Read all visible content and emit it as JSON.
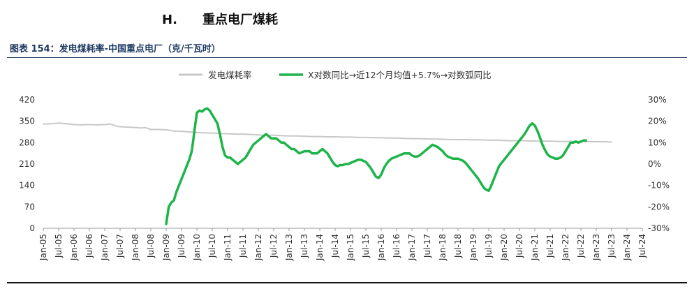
{
  "header": {
    "section_letter": "H.",
    "section_title": "重点电厂煤耗"
  },
  "figure": {
    "caption": "图表 154：发电煤耗率-中国重点电厂（克/千瓦时）"
  },
  "colors": {
    "series_primary": "#c8c8c8",
    "series_secondary": "#1db44a",
    "caption": "#1f3a63"
  },
  "chart_data": {
    "type": "line",
    "x_type": "month",
    "x_range": [
      "2005-01",
      "2024-07"
    ],
    "x_tick_labels": [
      "Jan-05",
      "Jul-05",
      "Jan-06",
      "Jul-06",
      "Jan-07",
      "Jul-07",
      "Jan-08",
      "Jul-08",
      "Jan-09",
      "Jul-09",
      "Jan-10",
      "Jul-10",
      "Jan-11",
      "Jul-11",
      "Jan-12",
      "Jul-12",
      "Jan-13",
      "Jul-13",
      "Jan-14",
      "Jul-14",
      "Jan-15",
      "Jul-15",
      "Jan-16",
      "Jul-16",
      "Jan-17",
      "Jul-17",
      "Jan-18",
      "Jul-18",
      "Jan-19",
      "Jul-19",
      "Jan-20",
      "Jul-20",
      "Jan-21",
      "Jul-21",
      "Jan-22",
      "Jul-22",
      "Jan-23",
      "Jul-23",
      "Jan-24",
      "Jul-24"
    ],
    "y_left": {
      "range": [
        0,
        420
      ],
      "ticks": [
        "0",
        "70",
        "140",
        "210",
        "280",
        "350",
        "420"
      ]
    },
    "y_right": {
      "range": [
        -30,
        30
      ],
      "ticks": [
        "-30%",
        "-20%",
        "-10%",
        "0%",
        "10%",
        "20%",
        "30%"
      ]
    },
    "legend_position": "top",
    "gridlines": false,
    "series": [
      {
        "name": "发电煤耗率",
        "axis": "left",
        "points": [
          [
            "2005-01",
            341
          ],
          [
            "2005-04",
            342
          ],
          [
            "2005-07",
            344
          ],
          [
            "2005-10",
            342
          ],
          [
            "2006-01",
            339
          ],
          [
            "2006-04",
            338
          ],
          [
            "2006-07",
            339
          ],
          [
            "2006-10",
            338
          ],
          [
            "2007-01",
            339
          ],
          [
            "2007-03",
            341
          ],
          [
            "2007-06",
            333
          ],
          [
            "2007-09",
            331
          ],
          [
            "2007-12",
            330
          ],
          [
            "2008-03",
            328
          ],
          [
            "2008-05",
            329
          ],
          [
            "2008-07",
            323
          ],
          [
            "2008-10",
            323
          ],
          [
            "2009-01",
            322
          ],
          [
            "2009-04",
            318
          ],
          [
            "2009-07",
            317
          ],
          [
            "2009-10",
            315
          ],
          [
            "2010-01",
            313
          ],
          [
            "2010-04",
            312
          ],
          [
            "2010-07",
            311
          ],
          [
            "2010-10",
            310
          ],
          [
            "2011-01",
            309
          ],
          [
            "2011-04",
            308
          ],
          [
            "2011-07",
            308
          ],
          [
            "2011-10",
            307
          ],
          [
            "2012-01",
            305
          ],
          [
            "2012-04",
            304
          ],
          [
            "2012-07",
            304
          ],
          [
            "2012-10",
            303
          ],
          [
            "2013-01",
            302
          ],
          [
            "2013-04",
            302
          ],
          [
            "2013-07",
            301
          ],
          [
            "2013-10",
            300
          ],
          [
            "2014-01",
            300
          ],
          [
            "2014-04",
            299
          ],
          [
            "2014-07",
            299
          ],
          [
            "2014-10",
            298
          ],
          [
            "2015-01",
            298
          ],
          [
            "2015-04",
            297
          ],
          [
            "2015-07",
            297
          ],
          [
            "2015-10",
            296
          ],
          [
            "2016-01",
            296
          ],
          [
            "2016-04",
            295
          ],
          [
            "2016-07",
            295
          ],
          [
            "2016-10",
            294
          ],
          [
            "2017-01",
            293
          ],
          [
            "2017-04",
            293
          ],
          [
            "2017-07",
            292
          ],
          [
            "2017-10",
            292
          ],
          [
            "2018-01",
            291
          ],
          [
            "2018-04",
            290
          ],
          [
            "2018-07",
            290
          ],
          [
            "2018-10",
            290
          ],
          [
            "2019-01",
            289
          ],
          [
            "2019-04",
            289
          ],
          [
            "2019-07",
            288
          ],
          [
            "2019-10",
            288
          ],
          [
            "2020-01",
            287
          ],
          [
            "2020-04",
            286
          ],
          [
            "2020-07",
            287
          ],
          [
            "2020-10",
            286
          ],
          [
            "2021-01",
            285
          ],
          [
            "2021-04",
            285
          ],
          [
            "2021-07",
            285
          ],
          [
            "2021-10",
            284
          ],
          [
            "2022-01",
            284
          ],
          [
            "2022-04",
            284
          ],
          [
            "2022-07",
            284
          ],
          [
            "2022-10",
            283
          ],
          [
            "2023-01",
            283
          ],
          [
            "2023-04",
            283
          ],
          [
            "2023-07",
            282
          ]
        ]
      },
      {
        "name": "X对数同比→近12个月均值+5.7%→对数弧同比",
        "axis": "right",
        "points": [
          [
            "2009-01",
            -28
          ],
          [
            "2009-02",
            -20
          ],
          [
            "2009-03",
            -18
          ],
          [
            "2009-04",
            -17
          ],
          [
            "2009-05",
            -13
          ],
          [
            "2009-06",
            -10
          ],
          [
            "2009-07",
            -7
          ],
          [
            "2009-08",
            -4
          ],
          [
            "2009-09",
            -1
          ],
          [
            "2009-10",
            2
          ],
          [
            "2009-11",
            6
          ],
          [
            "2009-12",
            15
          ],
          [
            "2010-01",
            24
          ],
          [
            "2010-02",
            25
          ],
          [
            "2010-03",
            24.5
          ],
          [
            "2010-04",
            25.5
          ],
          [
            "2010-05",
            26
          ],
          [
            "2010-06",
            25
          ],
          [
            "2010-07",
            23
          ],
          [
            "2010-08",
            21
          ],
          [
            "2010-09",
            19
          ],
          [
            "2010-10",
            14
          ],
          [
            "2010-11",
            8
          ],
          [
            "2010-12",
            4
          ],
          [
            "2011-01",
            3
          ],
          [
            "2011-02",
            3
          ],
          [
            "2011-03",
            2
          ],
          [
            "2011-04",
            1
          ],
          [
            "2011-05",
            0
          ],
          [
            "2011-06",
            1
          ],
          [
            "2011-07",
            2
          ],
          [
            "2011-08",
            3
          ],
          [
            "2011-09",
            5
          ],
          [
            "2011-10",
            7
          ],
          [
            "2011-11",
            9
          ],
          [
            "2011-12",
            10
          ],
          [
            "2012-01",
            11
          ],
          [
            "2012-02",
            12
          ],
          [
            "2012-03",
            13
          ],
          [
            "2012-04",
            14
          ],
          [
            "2012-05",
            13
          ],
          [
            "2012-06",
            12
          ],
          [
            "2012-07",
            12
          ],
          [
            "2012-08",
            12
          ],
          [
            "2012-09",
            11
          ],
          [
            "2012-10",
            10
          ],
          [
            "2012-11",
            10
          ],
          [
            "2012-12",
            9
          ],
          [
            "2013-01",
            8
          ],
          [
            "2013-02",
            7
          ],
          [
            "2013-03",
            7
          ],
          [
            "2013-04",
            6
          ],
          [
            "2013-05",
            5
          ],
          [
            "2013-06",
            5.5
          ],
          [
            "2013-07",
            6
          ],
          [
            "2013-08",
            6
          ],
          [
            "2013-09",
            6
          ],
          [
            "2013-10",
            5
          ],
          [
            "2013-11",
            5
          ],
          [
            "2013-12",
            5
          ],
          [
            "2014-01",
            6
          ],
          [
            "2014-02",
            7
          ],
          [
            "2014-03",
            6
          ],
          [
            "2014-04",
            5
          ],
          [
            "2014-05",
            3
          ],
          [
            "2014-06",
            1
          ],
          [
            "2014-07",
            -0.5
          ],
          [
            "2014-08",
            -1
          ],
          [
            "2014-09",
            -0.5
          ],
          [
            "2014-10",
            -0.5
          ],
          [
            "2014-11",
            0
          ],
          [
            "2014-12",
            0
          ],
          [
            "2015-01",
            0.5
          ],
          [
            "2015-02",
            1
          ],
          [
            "2015-03",
            1.5
          ],
          [
            "2015-04",
            2
          ],
          [
            "2015-05",
            2
          ],
          [
            "2015-06",
            1.5
          ],
          [
            "2015-07",
            1
          ],
          [
            "2015-08",
            -0.5
          ],
          [
            "2015-09",
            -2
          ],
          [
            "2015-10",
            -4
          ],
          [
            "2015-11",
            -6
          ],
          [
            "2015-12",
            -6.5
          ],
          [
            "2016-01",
            -5
          ],
          [
            "2016-02",
            -2
          ],
          [
            "2016-03",
            0
          ],
          [
            "2016-04",
            1.5
          ],
          [
            "2016-05",
            2.5
          ],
          [
            "2016-06",
            3
          ],
          [
            "2016-07",
            3.5
          ],
          [
            "2016-08",
            4
          ],
          [
            "2016-09",
            4.5
          ],
          [
            "2016-10",
            5
          ],
          [
            "2016-11",
            5
          ],
          [
            "2016-12",
            5
          ],
          [
            "2017-01",
            4
          ],
          [
            "2017-02",
            3.5
          ],
          [
            "2017-03",
            3.5
          ],
          [
            "2017-04",
            4
          ],
          [
            "2017-05",
            5
          ],
          [
            "2017-06",
            6
          ],
          [
            "2017-07",
            7
          ],
          [
            "2017-08",
            8
          ],
          [
            "2017-09",
            9
          ],
          [
            "2017-10",
            8.5
          ],
          [
            "2017-11",
            8
          ],
          [
            "2017-12",
            7
          ],
          [
            "2018-01",
            6
          ],
          [
            "2018-02",
            4.5
          ],
          [
            "2018-03",
            3.5
          ],
          [
            "2018-04",
            3
          ],
          [
            "2018-05",
            2.5
          ],
          [
            "2018-06",
            2.5
          ],
          [
            "2018-07",
            2.5
          ],
          [
            "2018-08",
            2
          ],
          [
            "2018-09",
            1.5
          ],
          [
            "2018-10",
            0.5
          ],
          [
            "2018-11",
            -1
          ],
          [
            "2018-12",
            -2.5
          ],
          [
            "2019-01",
            -4
          ],
          [
            "2019-02",
            -5.5
          ],
          [
            "2019-03",
            -7
          ],
          [
            "2019-04",
            -9
          ],
          [
            "2019-05",
            -11
          ],
          [
            "2019-06",
            -12
          ],
          [
            "2019-07",
            -12.5
          ],
          [
            "2019-08",
            -10
          ],
          [
            "2019-09",
            -7
          ],
          [
            "2019-10",
            -4
          ],
          [
            "2019-11",
            -1
          ],
          [
            "2019-12",
            0.5
          ],
          [
            "2020-01",
            2
          ],
          [
            "2020-02",
            3.5
          ],
          [
            "2020-03",
            5
          ],
          [
            "2020-04",
            6.5
          ],
          [
            "2020-05",
            8
          ],
          [
            "2020-06",
            9.5
          ],
          [
            "2020-07",
            11
          ],
          [
            "2020-08",
            12.5
          ],
          [
            "2020-09",
            14
          ],
          [
            "2020-10",
            16
          ],
          [
            "2020-11",
            18
          ],
          [
            "2020-12",
            19
          ],
          [
            "2021-01",
            18
          ],
          [
            "2021-02",
            15.5
          ],
          [
            "2021-03",
            12.5
          ],
          [
            "2021-04",
            9
          ],
          [
            "2021-05",
            6.5
          ],
          [
            "2021-06",
            4.5
          ],
          [
            "2021-07",
            3.5
          ],
          [
            "2021-08",
            3
          ],
          [
            "2021-09",
            2.5
          ],
          [
            "2021-10",
            2.5
          ],
          [
            "2021-11",
            3
          ],
          [
            "2021-12",
            4
          ],
          [
            "2022-01",
            6
          ],
          [
            "2022-02",
            8
          ],
          [
            "2022-03",
            10
          ],
          [
            "2022-04",
            10
          ],
          [
            "2022-05",
            10.5
          ],
          [
            "2022-06",
            10
          ],
          [
            "2022-07",
            10.5
          ],
          [
            "2022-08",
            11
          ],
          [
            "2022-09",
            11
          ]
        ]
      }
    ]
  }
}
